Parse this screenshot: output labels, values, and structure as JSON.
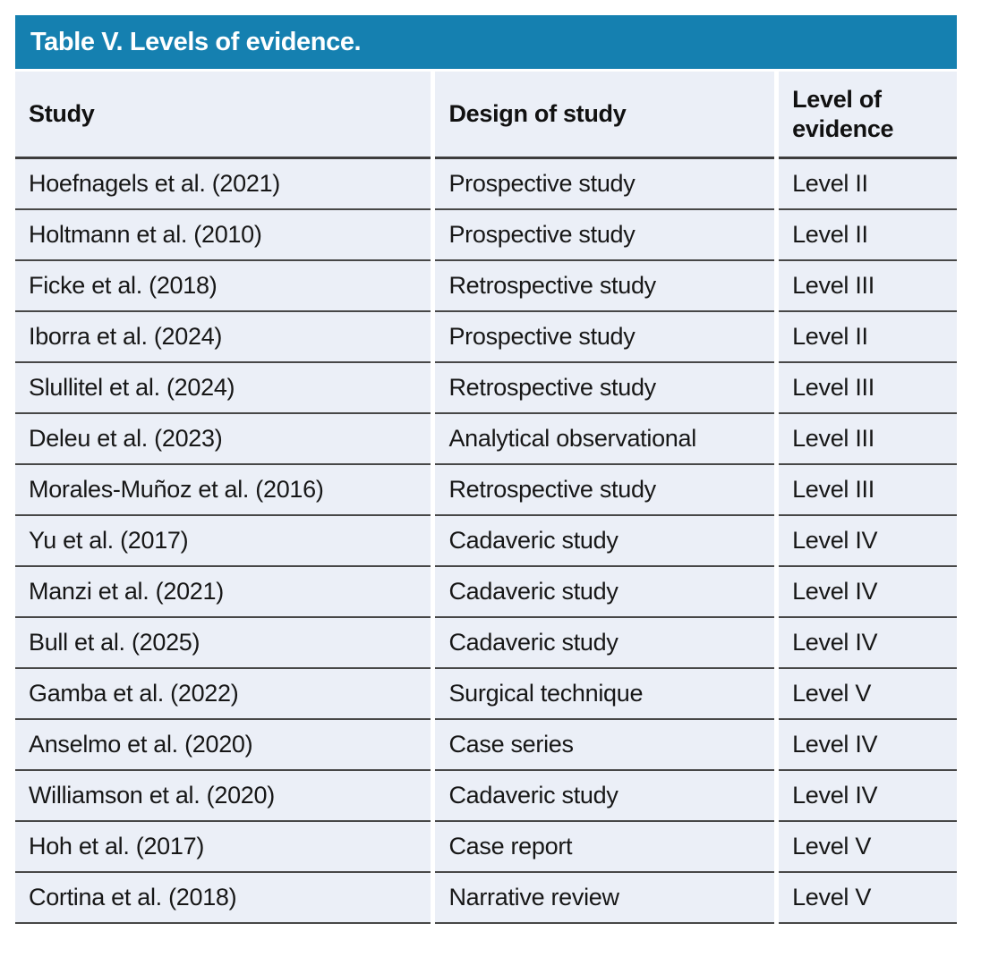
{
  "table": {
    "title": "Table V. Levels of evidence.",
    "accent_color": "#1580b0",
    "cell_background_color": "#ebeff7",
    "separator_color": "#474747",
    "title_text_color": "#ffffff",
    "columns": [
      "Study",
      "Design of study",
      "Level of evidence"
    ],
    "rows": [
      {
        "study": "Hoefnagels et al. (2021)",
        "design": "Prospective study",
        "level": "Level II"
      },
      {
        "study": "Holtmann et al. (2010)",
        "design": "Prospective study",
        "level": "Level II"
      },
      {
        "study": "Ficke et al. (2018)",
        "design": "Retrospective study",
        "level": "Level III"
      },
      {
        "study": "Iborra et al. (2024)",
        "design": "Prospective study",
        "level": "Level II"
      },
      {
        "study": "Slullitel et al. (2024)",
        "design": "Retrospective study",
        "level": "Level III"
      },
      {
        "study": "Deleu et al. (2023)",
        "design": "Analytical observational",
        "level": "Level III"
      },
      {
        "study": "Morales-Muñoz et al. (2016)",
        "design": "Retrospective study",
        "level": "Level III"
      },
      {
        "study": "Yu et al. (2017)",
        "design": "Cadaveric study",
        "level": "Level IV"
      },
      {
        "study": "Manzi et al. (2021)",
        "design": "Cadaveric study",
        "level": "Level IV"
      },
      {
        "study": "Bull et al. (2025)",
        "design": "Cadaveric study",
        "level": "Level IV"
      },
      {
        "study": "Gamba et al. (2022)",
        "design": "Surgical technique",
        "level": "Level V"
      },
      {
        "study": "Anselmo et al. (2020)",
        "design": "Case series",
        "level": "Level IV"
      },
      {
        "study": "Williamson et al. (2020)",
        "design": "Cadaveric study",
        "level": "Level IV"
      },
      {
        "study": "Hoh et al. (2017)",
        "design": "Case report",
        "level": "Level V"
      },
      {
        "study": "Cortina et al. (2018)",
        "design": "Narrative review",
        "level": "Level V"
      }
    ]
  }
}
